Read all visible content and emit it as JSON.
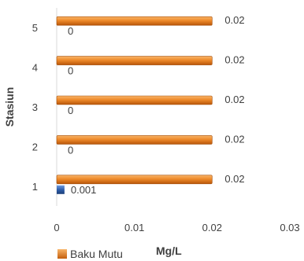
{
  "chart_data": {
    "type": "bar",
    "orientation": "horizontal",
    "categories": [
      "1",
      "2",
      "3",
      "4",
      "5"
    ],
    "series": [
      {
        "name": "",
        "values": [
          0.001,
          0,
          0,
          0,
          0
        ],
        "labels": [
          "0.001",
          "0",
          "0",
          "0",
          "0"
        ],
        "color": "#2E5EAA"
      },
      {
        "name": "Baku Mutu",
        "values": [
          0.02,
          0.02,
          0.02,
          0.02,
          0.02
        ],
        "labels": [
          "0.02",
          "0.02",
          "0.02",
          "0.02",
          "0.02"
        ],
        "color": "#E46C0A"
      }
    ],
    "xlabel": "Mg/L",
    "ylabel": "Stasiun",
    "xlim": [
      0,
      0.03
    ],
    "xticks": [
      "0",
      "0.01",
      "0.02",
      "0.03"
    ],
    "grid": false,
    "legend": "bottom-left"
  }
}
